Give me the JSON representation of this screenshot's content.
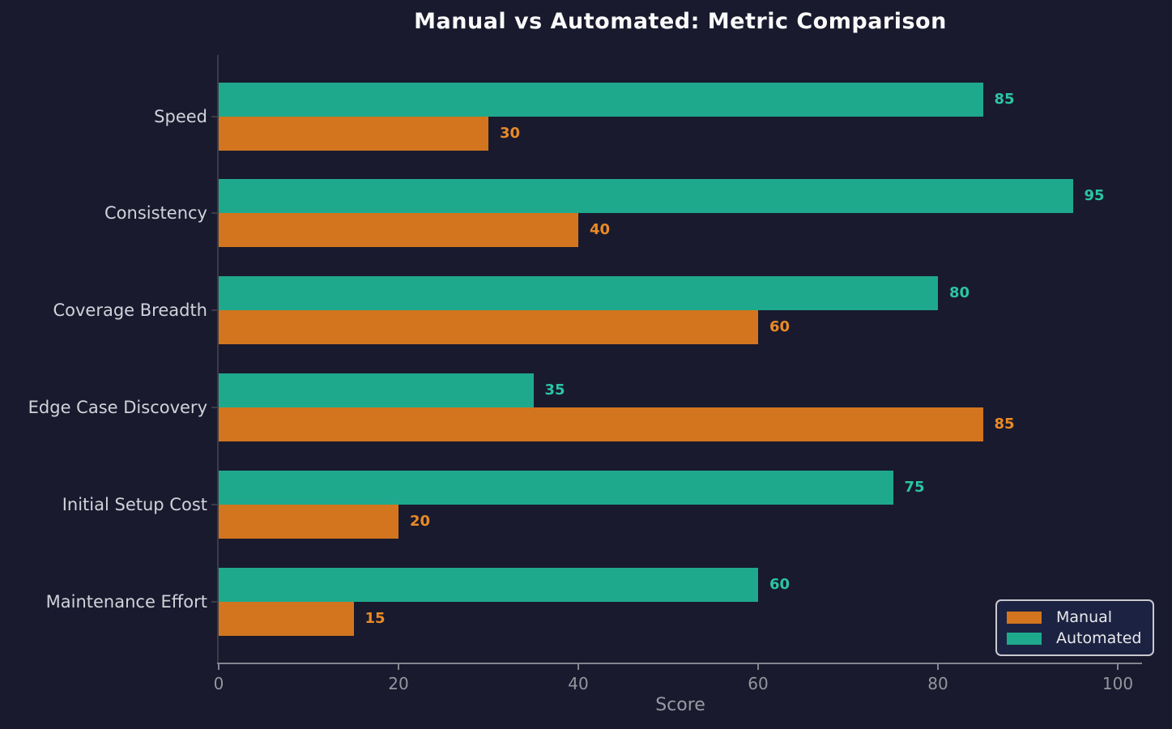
{
  "title": "Manual vs Automated: Metric Comparison",
  "colors": {
    "background": "#191a2e",
    "manual_bar": "#d2751e",
    "automated_bar": "#1fa98c",
    "manual_value_label": "#e98a26",
    "automated_value_label": "#2bc5a1",
    "x_axis": "#85858d",
    "y_axis": "#3c3c46",
    "tick_text": "#95959d",
    "category_text": "#d2d2da",
    "title_text": "#fafafa",
    "xlabel_text": "#9a9aa2",
    "legend_background": "#1c2342",
    "legend_border": "#c9c9cf",
    "legend_text": "#e9e9ec"
  },
  "chart_data": {
    "type": "bar",
    "orientation": "horizontal",
    "title": "Manual vs Automated: Metric Comparison",
    "xlabel": "Score",
    "ylabel": "",
    "xlim": [
      0,
      102.7
    ],
    "xticks": [
      0,
      20,
      40,
      60,
      80,
      100
    ],
    "grid": false,
    "legend_position": "lower right",
    "categories": [
      "Speed",
      "Consistency",
      "Coverage Breadth",
      "Edge Case Discovery",
      "Initial Setup Cost",
      "Maintenance Effort"
    ],
    "series": [
      {
        "name": "Manual",
        "color": "#d2751e",
        "label_color": "#e98a26",
        "values": [
          30,
          40,
          60,
          85,
          20,
          15
        ]
      },
      {
        "name": "Automated",
        "color": "#1fa98c",
        "label_color": "#2bc5a1",
        "values": [
          85,
          95,
          80,
          35,
          75,
          60
        ]
      }
    ],
    "value_labels_shown": true
  }
}
